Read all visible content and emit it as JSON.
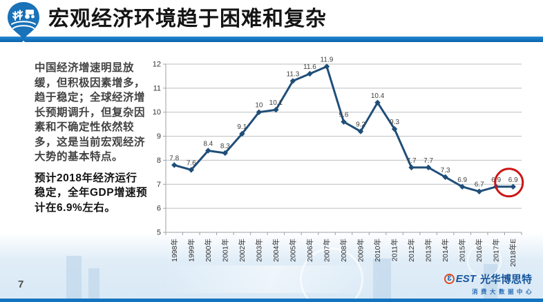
{
  "header": {
    "title": "宏观经济环境趋于困难和复杂"
  },
  "commentary": {
    "paragraph1": "中国经济增速明显放缓，但积极因素增多，趋于稳定；全球经济增长预期调升，但复杂因素和不确定性依然较多，这是当前宏观经济大势的基本特点。",
    "paragraph2": "预计2018年经济运行稳定，全年GDP增速预计在6.9%左右。"
  },
  "chart_data": {
    "type": "line",
    "categories": [
      "1998年",
      "1999年",
      "2000年",
      "2001年",
      "2002年",
      "2003年",
      "2004年",
      "2005年",
      "2006年",
      "2007年",
      "2008年",
      "2009年",
      "2010年",
      "2011年",
      "2012年",
      "2013年",
      "2014年",
      "2015年",
      "2016年",
      "2017年",
      "2018年E"
    ],
    "values": [
      7.8,
      7.6,
      8.4,
      8.3,
      9.1,
      10,
      10.1,
      11.3,
      11.6,
      11.9,
      9.6,
      9.2,
      10.4,
      9.3,
      7.7,
      7.7,
      7.3,
      6.9,
      6.7,
      6.9,
      6.9
    ],
    "labels": [
      "7.8",
      "7.6",
      "8.4",
      "8.3",
      "9.1",
      "10",
      "10.1",
      "11.3",
      "11.6",
      "11.9",
      "9.6",
      "9.2",
      "10.4",
      "9.3",
      "7.7",
      "7.7",
      "7.3",
      "6.9",
      "6.7",
      "6.9",
      "6.9"
    ],
    "title": "",
    "xlabel": "",
    "ylabel": "",
    "ylim": [
      5,
      12
    ],
    "ytick_step": 1,
    "grid": true,
    "legend": "none",
    "line_color": "#1f4e79",
    "marker": "diamond",
    "annotation": {
      "type": "circle-highlight",
      "target_index": 20,
      "color": "#cc1414",
      "meaning": "2018E forecast point highlighted"
    }
  },
  "footer": {
    "page_number": "7",
    "logo_b": "3",
    "logo_est": "EST",
    "logo_company": "光华博思特",
    "logo_tagline": "消费大数据中心"
  },
  "colors": {
    "accent_bar": "#1272bd",
    "chart_line": "#1f4e79",
    "grid_line": "#b9bdc1",
    "axis_line": "#9aa0a5",
    "annotation_red": "#cc1414",
    "title_text": "#141414",
    "bottom_band": "#d9e9f6"
  }
}
